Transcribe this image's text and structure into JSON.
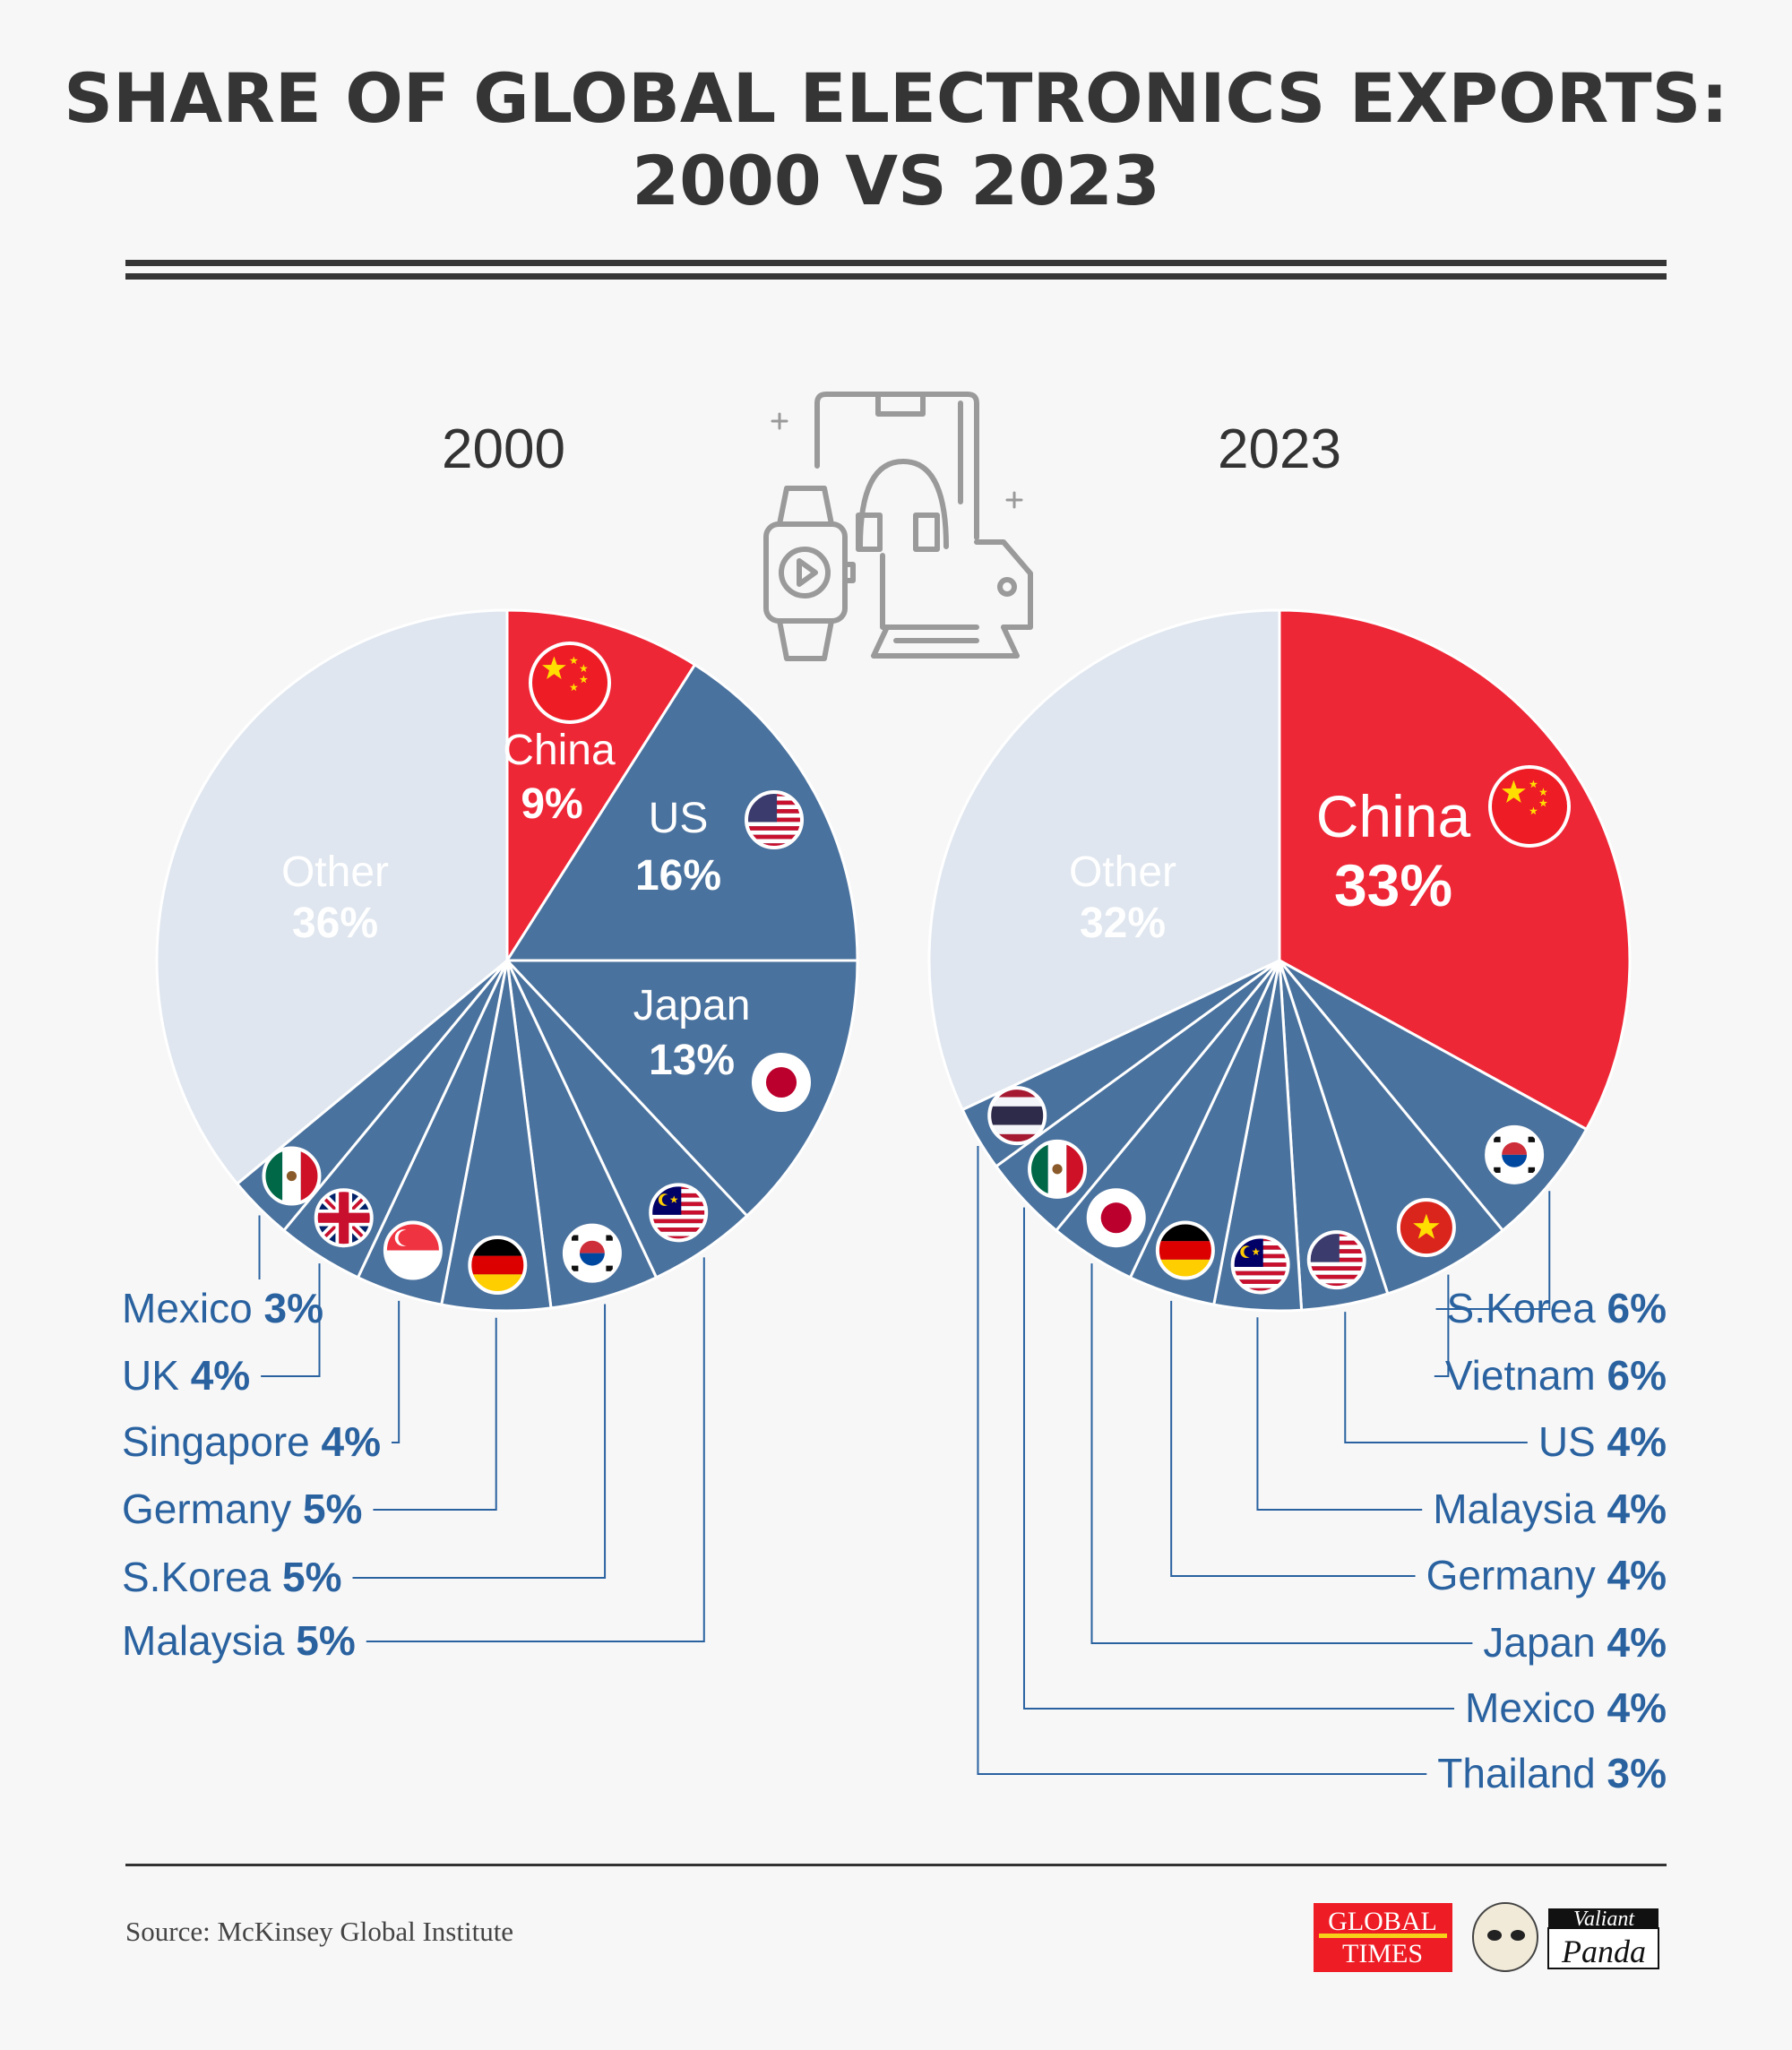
{
  "title_line1": "SHARE OF GLOBAL ELECTRONICS EXPORTS:",
  "title_line2": "2000 VS 2023",
  "source": "Source: McKinsey Global Institute",
  "logos": {
    "global_times": "GLOBAL TIMES",
    "valiant_panda": "Valiant Panda"
  },
  "colors": {
    "china": "#ee2737",
    "country": "#4a729e",
    "other": "#dfe6ef",
    "label": "#2a62a0",
    "background": "#f7f7f7"
  },
  "icon": "electronics-devices-icon",
  "chart_data": [
    {
      "type": "pie",
      "title": "2000",
      "categories": [
        "China",
        "US",
        "Japan",
        "Malaysia",
        "S.Korea",
        "Germany",
        "Singapore",
        "UK",
        "Mexico",
        "Other"
      ],
      "values": [
        9,
        16,
        13,
        5,
        5,
        5,
        4,
        4,
        3,
        36
      ],
      "labels": [
        "9%",
        "16%",
        "13%",
        "5%",
        "5%",
        "5%",
        "4%",
        "4%",
        "3%",
        "36%"
      ],
      "flags": [
        "cn",
        "us",
        "jp",
        "my",
        "kr",
        "de",
        "sg",
        "gb",
        "mx",
        ""
      ]
    },
    {
      "type": "pie",
      "title": "2023",
      "categories": [
        "China",
        "S.Korea",
        "Vietnam",
        "US",
        "Malaysia",
        "Germany",
        "Japan",
        "Mexico",
        "Thailand",
        "Other"
      ],
      "values": [
        33,
        6,
        6,
        4,
        4,
        4,
        4,
        4,
        3,
        32
      ],
      "labels": [
        "33%",
        "6%",
        "6%",
        "4%",
        "4%",
        "4%",
        "4%",
        "4%",
        "3%",
        "32%"
      ],
      "flags": [
        "cn",
        "kr",
        "vn",
        "us",
        "my",
        "de",
        "jp",
        "mx",
        "th",
        ""
      ]
    }
  ]
}
